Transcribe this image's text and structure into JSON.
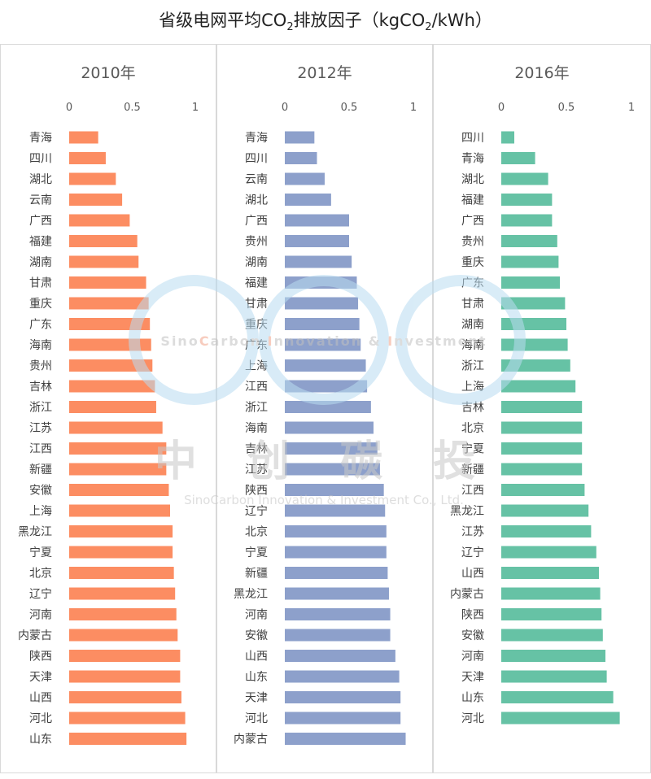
{
  "chart_data": {
    "type": "bar",
    "title": "省级电网平均CO",
    "title_sub": "2",
    "title_rest": "排放因子（kgCO",
    "title_sub2": "2",
    "title_end": "/kWh）",
    "watermark": {
      "brand_a": "Sino",
      "brand_b": "C",
      "brand_c": "arbon ",
      "brand_d": "I",
      "brand_e": "nnovation & ",
      "brand_f": "I",
      "brand_g": "nvestment",
      "cn": "中 创 碳 投",
      "company": "SinoCarbon Innovation & Investment Co., Ltd."
    },
    "panels": [
      {
        "name": "2010年",
        "color": "#fc8d62",
        "xlim": [
          0,
          1
        ],
        "ticks": [
          "0",
          "0.5",
          "1"
        ],
        "categories": [
          "青海",
          "四川",
          "湖北",
          "云南",
          "广西",
          "福建",
          "湖南",
          "甘肃",
          "重庆",
          "广东",
          "海南",
          "贵州",
          "吉林",
          "浙江",
          "江苏",
          "江西",
          "新疆",
          "安徽",
          "上海",
          "黑龙江",
          "宁夏",
          "北京",
          "辽宁",
          "河南",
          "内蒙古",
          "陕西",
          "天津",
          "山西",
          "河北",
          "山东"
        ],
        "values": [
          0.23,
          0.29,
          0.37,
          0.42,
          0.48,
          0.54,
          0.55,
          0.61,
          0.63,
          0.64,
          0.65,
          0.66,
          0.68,
          0.69,
          0.74,
          0.77,
          0.77,
          0.79,
          0.8,
          0.82,
          0.82,
          0.83,
          0.84,
          0.85,
          0.86,
          0.88,
          0.88,
          0.89,
          0.92,
          0.93
        ]
      },
      {
        "name": "2012年",
        "color": "#8da0cb",
        "xlim": [
          0,
          1
        ],
        "ticks": [
          "0",
          "0.5",
          "1"
        ],
        "categories": [
          "青海",
          "四川",
          "云南",
          "湖北",
          "广西",
          "贵州",
          "湖南",
          "福建",
          "甘肃",
          "重庆",
          "广东",
          "上海",
          "江西",
          "浙江",
          "海南",
          "吉林",
          "江苏",
          "陕西",
          "辽宁",
          "北京",
          "宁夏",
          "新疆",
          "黑龙江",
          "河南",
          "安徽",
          "山西",
          "山东",
          "天津",
          "河北",
          "内蒙古"
        ],
        "values": [
          0.23,
          0.25,
          0.31,
          0.36,
          0.5,
          0.5,
          0.52,
          0.56,
          0.57,
          0.58,
          0.59,
          0.63,
          0.64,
          0.67,
          0.69,
          0.72,
          0.74,
          0.77,
          0.78,
          0.79,
          0.79,
          0.8,
          0.81,
          0.82,
          0.82,
          0.86,
          0.89,
          0.9,
          0.9,
          0.94
        ]
      },
      {
        "name": "2016年",
        "color": "#66c2a5",
        "xlim": [
          0,
          1
        ],
        "ticks": [
          "0",
          "0.5",
          "1"
        ],
        "categories": [
          "四川",
          "青海",
          "湖北",
          "福建",
          "广西",
          "贵州",
          "重庆",
          "广东",
          "甘肃",
          "湖南",
          "海南",
          "浙江",
          "上海",
          "吉林",
          "北京",
          "宁夏",
          "新疆",
          "江西",
          "黑龙江",
          "江苏",
          "辽宁",
          "山西",
          "内蒙古",
          "陕西",
          "安徽",
          "河南",
          "天津",
          "山东",
          "河北"
        ],
        "values": [
          0.1,
          0.26,
          0.36,
          0.39,
          0.39,
          0.43,
          0.44,
          0.45,
          0.49,
          0.5,
          0.51,
          0.53,
          0.57,
          0.62,
          0.62,
          0.62,
          0.62,
          0.64,
          0.67,
          0.69,
          0.73,
          0.75,
          0.76,
          0.77,
          0.78,
          0.8,
          0.81,
          0.86,
          0.91
        ]
      }
    ]
  }
}
